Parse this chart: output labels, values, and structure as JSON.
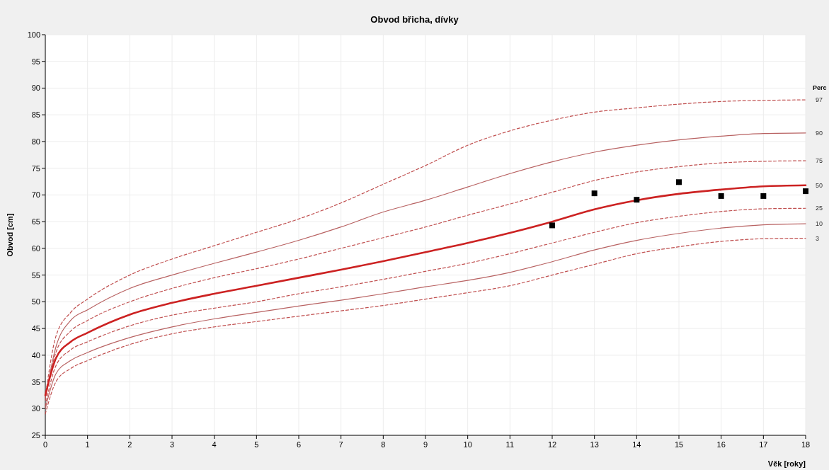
{
  "chart_data": {
    "type": "line",
    "title": "Obvod břicha, dívky",
    "xlabel": "Věk [roky]",
    "ylabel": "Obvod [cm]",
    "legend_title": "Perc",
    "x": [
      0,
      0.25,
      0.6,
      1,
      2,
      3,
      4,
      5,
      6,
      7,
      8,
      9,
      10,
      11,
      12,
      13,
      14,
      15,
      16,
      17,
      18
    ],
    "xlim": [
      0,
      18
    ],
    "xticks": [
      0,
      1,
      2,
      3,
      4,
      5,
      6,
      7,
      8,
      9,
      10,
      11,
      12,
      13,
      14,
      15,
      16,
      17,
      18
    ],
    "ylim": [
      25,
      100
    ],
    "yticks": [
      25,
      30,
      35,
      40,
      45,
      50,
      55,
      60,
      65,
      70,
      75,
      80,
      85,
      90,
      95,
      100
    ],
    "grid": true,
    "legend": "right",
    "series": [
      {
        "name": "97",
        "color": "#c05050",
        "line_style": "dashed",
        "values": [
          32.2,
          43.5,
          48,
          50.5,
          55,
          58,
          60.5,
          63,
          65.5,
          68.5,
          72,
          75.5,
          79.3,
          82,
          84,
          85.5,
          86.3,
          87,
          87.5,
          87.7,
          87.8
        ]
      },
      {
        "name": "90",
        "color": "#b86262",
        "line_style": "solid",
        "values": [
          32,
          41.5,
          46.5,
          48.5,
          52.5,
          55,
          57.2,
          59.3,
          61.5,
          64,
          66.8,
          69,
          71.5,
          74,
          76.2,
          78,
          79.3,
          80.3,
          81,
          81.5,
          81.6
        ]
      },
      {
        "name": "75",
        "color": "#c05050",
        "line_style": "dashed",
        "values": [
          31.5,
          40.5,
          44.5,
          46.5,
          50,
          52.5,
          54.5,
          56.2,
          58,
          60,
          62,
          64,
          66.2,
          68.3,
          70.5,
          72.7,
          74.3,
          75.3,
          76,
          76.3,
          76.4
        ]
      },
      {
        "name": "50",
        "color": "#cc2222",
        "line_style": "solid",
        "values": [
          32.5,
          39.4,
          42.5,
          44.2,
          47.6,
          49.8,
          51.5,
          53,
          54.5,
          56,
          57.6,
          59.3,
          61,
          62.9,
          65,
          67.3,
          69,
          70.2,
          71,
          71.6,
          71.8
        ]
      },
      {
        "name": "25",
        "color": "#c05050",
        "line_style": "dashed",
        "values": [
          30.5,
          38,
          41,
          42.5,
          45.5,
          47.5,
          48.8,
          50,
          51.5,
          52.8,
          54.2,
          55.7,
          57.2,
          59,
          61,
          63,
          64.8,
          66,
          66.9,
          67.4,
          67.5
        ]
      },
      {
        "name": "10",
        "color": "#b86262",
        "line_style": "solid",
        "values": [
          30,
          36.5,
          39,
          40.5,
          43.3,
          45.3,
          46.8,
          48,
          49.2,
          50.3,
          51.5,
          52.8,
          54,
          55.5,
          57.5,
          59.7,
          61.5,
          62.8,
          63.8,
          64.4,
          64.6
        ]
      },
      {
        "name": "3",
        "color": "#c05050",
        "line_style": "dashed",
        "values": [
          29,
          35,
          37.5,
          39,
          42,
          44,
          45.3,
          46.3,
          47.3,
          48.3,
          49.3,
          50.5,
          51.7,
          53,
          55,
          57,
          59,
          60.3,
          61.3,
          61.8,
          61.9
        ]
      },
      {
        "type": "scatter",
        "color": "#000000",
        "marker": "square",
        "x": [
          12,
          13,
          14,
          15,
          16,
          17,
          18
        ],
        "values": [
          64.3,
          70.3,
          69.1,
          72.4,
          69.8,
          69.8,
          70.7
        ]
      }
    ]
  }
}
